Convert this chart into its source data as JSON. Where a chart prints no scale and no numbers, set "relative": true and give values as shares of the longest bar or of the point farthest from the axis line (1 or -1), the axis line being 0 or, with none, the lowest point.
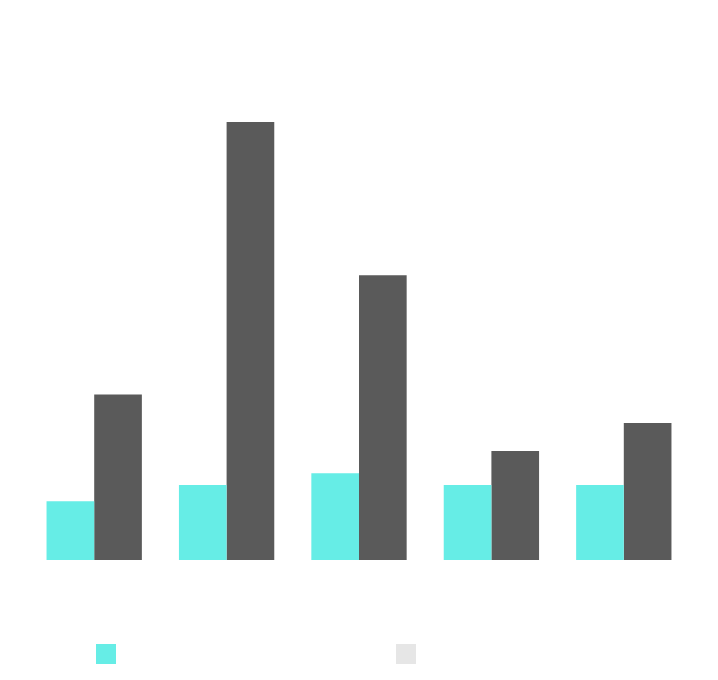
{
  "chart_data": {
    "type": "bar",
    "relative": true,
    "categories": [
      null,
      null,
      null,
      null,
      null
    ],
    "series": [
      {
        "color": "#66ede6",
        "values": [
          0.134,
          0.171,
          0.198,
          0.171,
          0.171
        ]
      },
      {
        "color": "#5a5a5a",
        "values": [
          0.378,
          1,
          0.65,
          0.249,
          0.313
        ]
      }
    ]
  }
}
